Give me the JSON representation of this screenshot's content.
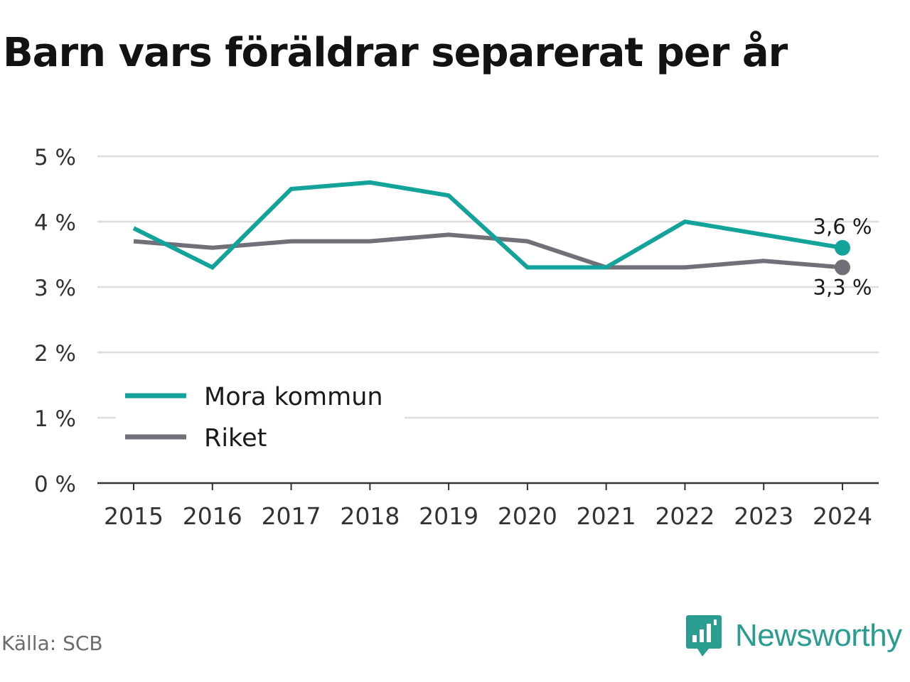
{
  "title": "Barn vars föräldrar separerat per år",
  "source": "Källa: SCB",
  "brand": "Newsworthy",
  "colors": {
    "mora": "#14a39a",
    "riket": "#717078",
    "grid": "#dddddd",
    "axis": "#333333"
  },
  "chart_data": {
    "type": "line",
    "x": [
      "2015",
      "2016",
      "2017",
      "2018",
      "2019",
      "2020",
      "2021",
      "2022",
      "2023",
      "2024"
    ],
    "series": [
      {
        "name": "Mora kommun",
        "values": [
          3.9,
          3.3,
          4.5,
          4.6,
          4.4,
          3.3,
          3.3,
          4.0,
          3.8,
          3.6
        ],
        "color": "#14a39a",
        "end_label": "3,6 %"
      },
      {
        "name": "Riket",
        "values": [
          3.7,
          3.6,
          3.7,
          3.7,
          3.8,
          3.7,
          3.3,
          3.3,
          3.4,
          3.3
        ],
        "color": "#717078",
        "end_label": "3,3 %"
      }
    ],
    "ylim": [
      0,
      5
    ],
    "yticks": [
      0,
      1,
      2,
      3,
      4,
      5
    ],
    "ytick_labels": [
      "0 %",
      "1 %",
      "2 %",
      "3 %",
      "4 %",
      "5 %"
    ],
    "grid": true,
    "legend": "bottom-left"
  }
}
